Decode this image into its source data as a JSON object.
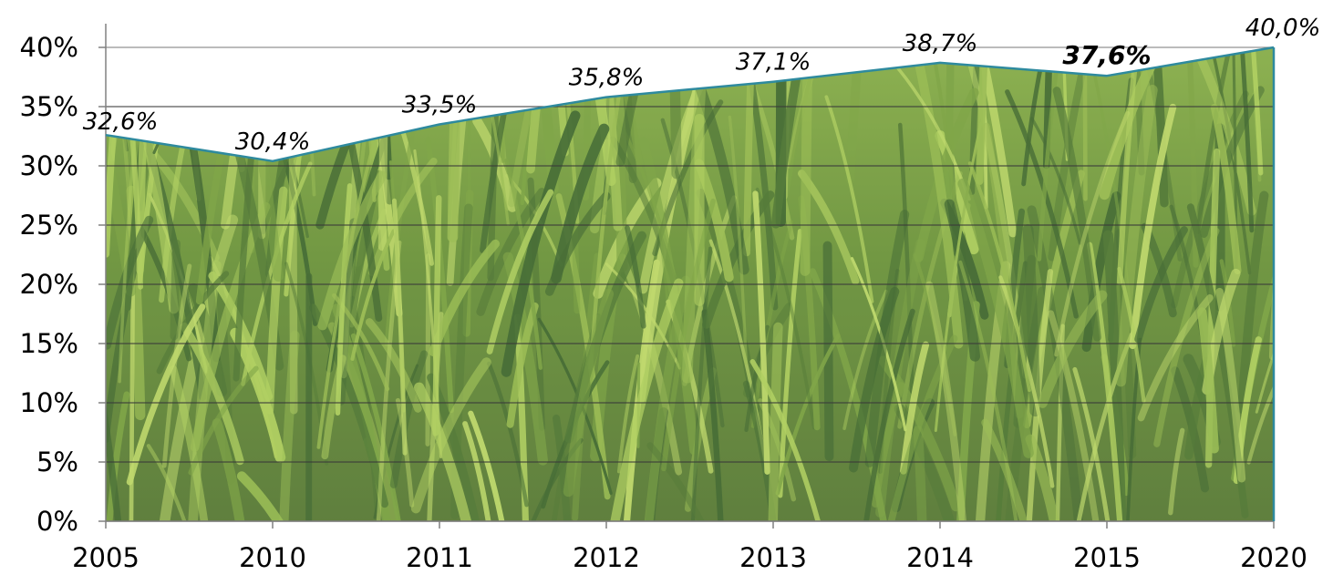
{
  "chart_data": {
    "type": "area",
    "title": "",
    "xlabel": "",
    "ylabel": "",
    "categories": [
      "2005",
      "2010",
      "2011",
      "2012",
      "2013",
      "2014",
      "2015",
      "2020"
    ],
    "values": [
      32.6,
      30.4,
      33.5,
      35.8,
      37.1,
      38.7,
      37.6,
      40.0
    ],
    "data_labels": [
      "32,6%",
      "30,4%",
      "33,5%",
      "35,8%",
      "37,1%",
      "38,7%",
      "37,6%",
      "40,0%"
    ],
    "emphasized_label_index": 6,
    "ylim": [
      0,
      40
    ],
    "y_ticks": [
      0,
      5,
      10,
      15,
      20,
      25,
      30,
      35,
      40
    ],
    "y_tick_labels": [
      "0%",
      "5%",
      "10%",
      "15%",
      "20%",
      "25%",
      "30%",
      "35%",
      "40%"
    ],
    "grid": true,
    "area_fill": "grass-photo",
    "colors": {
      "line": "#2e8a9e",
      "grid": "#3a3a3a",
      "axis": "#808080",
      "fill_dark": "#2f5a1c",
      "fill_mid": "#6f9a30",
      "fill_light": "#b7d45a"
    }
  }
}
